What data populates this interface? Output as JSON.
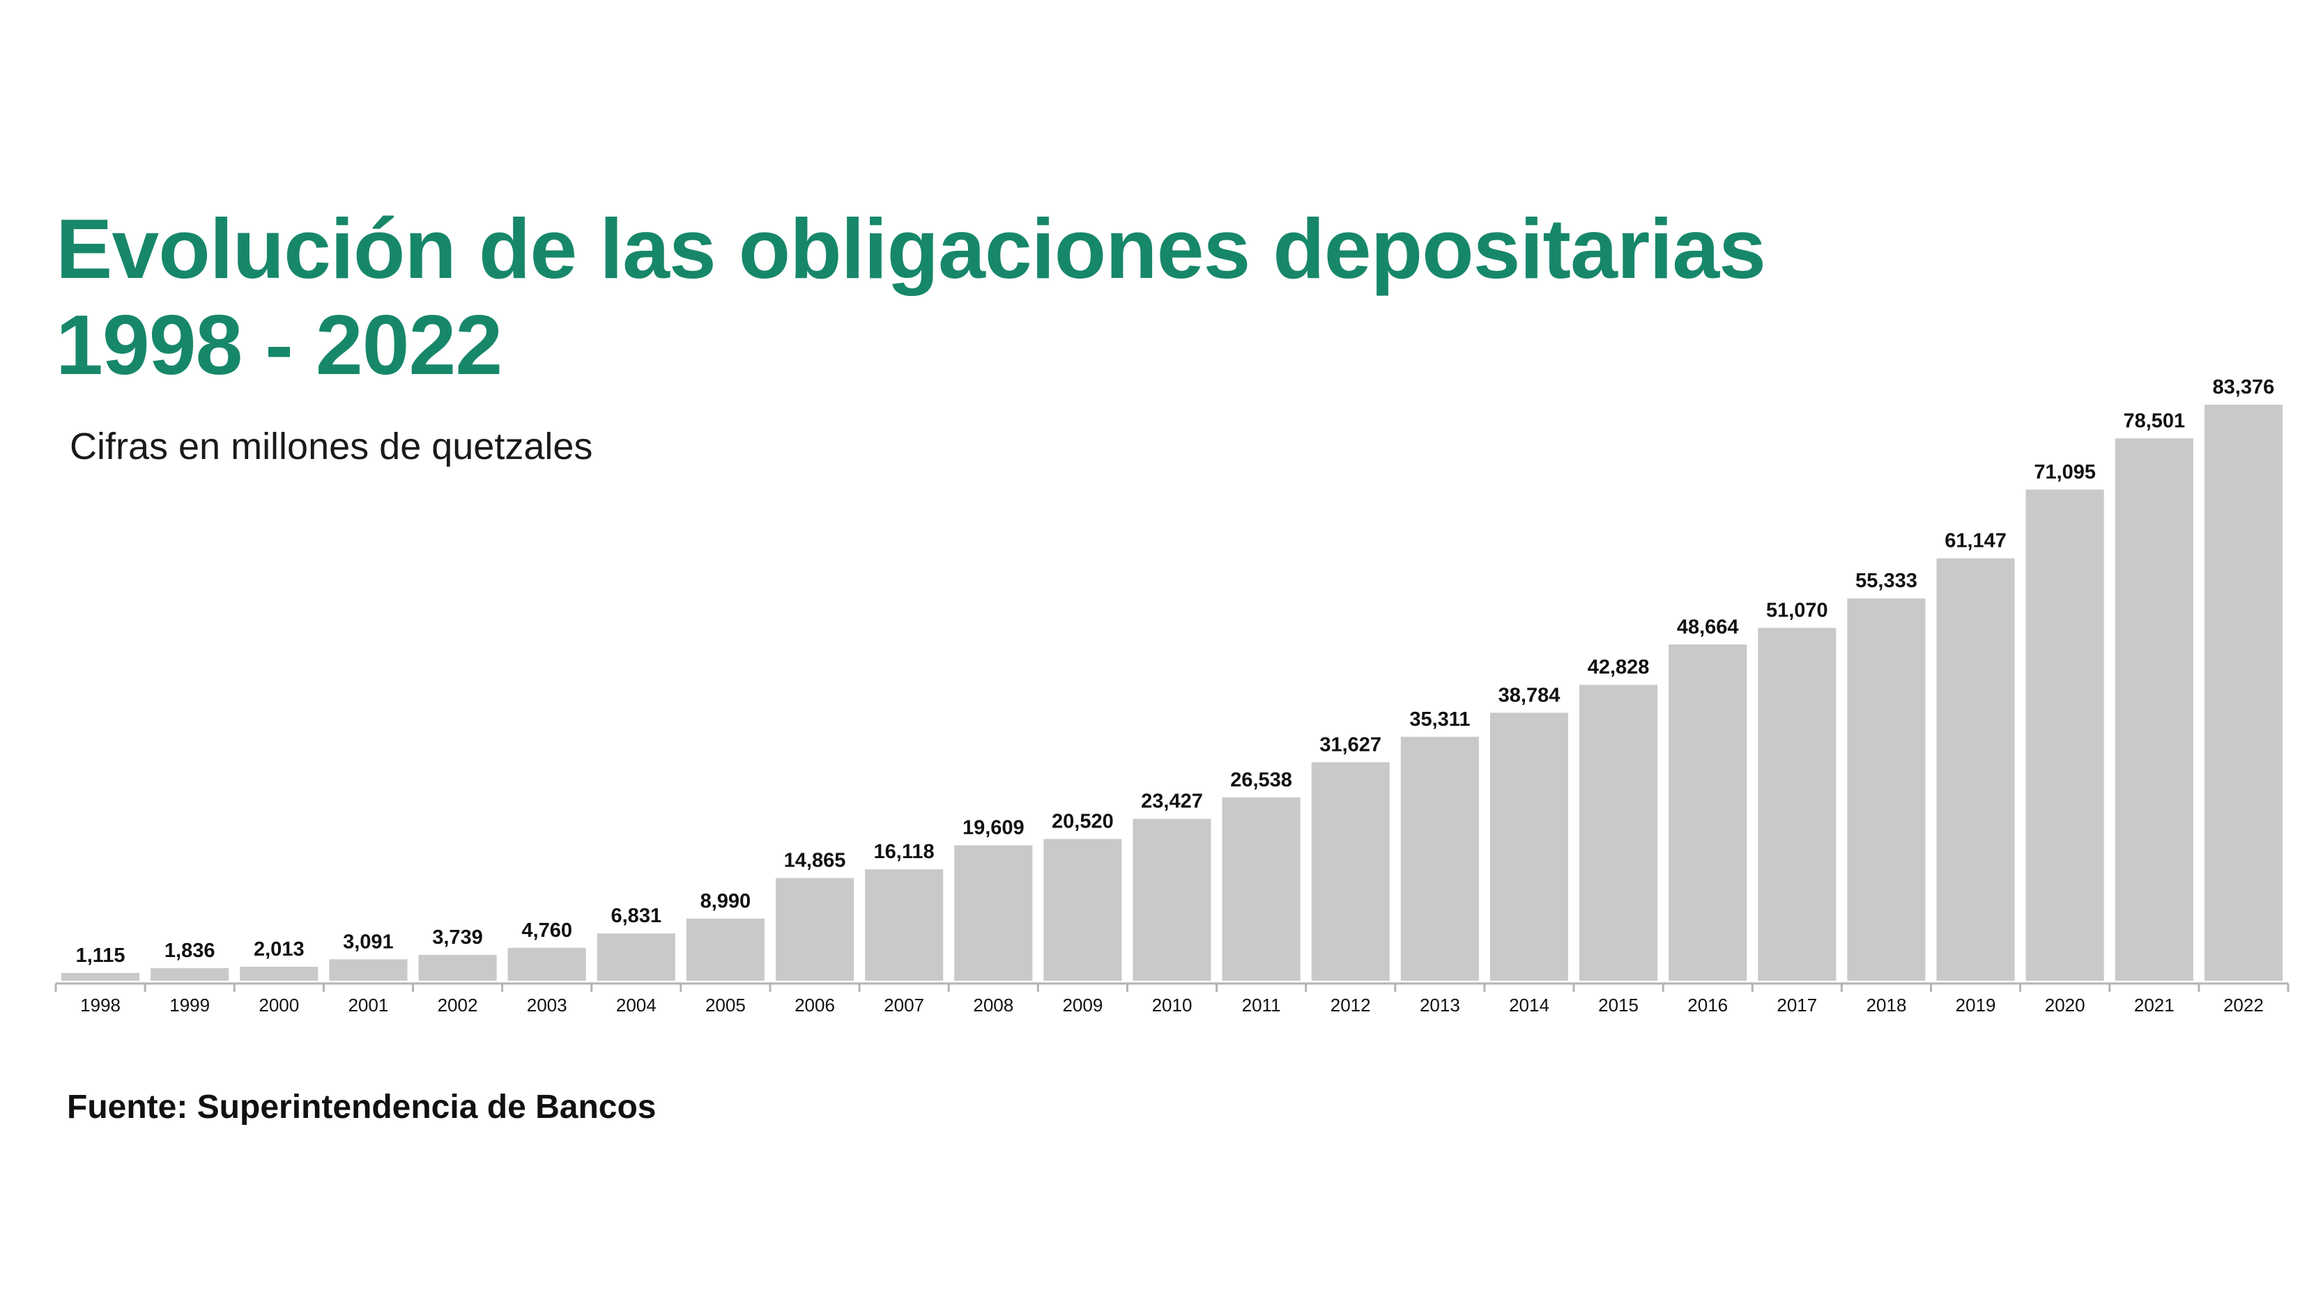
{
  "chart_data": {
    "type": "bar",
    "title": "Evolución de las obligaciones depositarias",
    "title_line2": "1998 - 2022",
    "subtitle": "Cifras en millones de quetzales",
    "source": "Fuente: Superintendencia de Bancos",
    "xlabel": "",
    "ylabel": "",
    "ylim": [
      0,
      83376
    ],
    "grid": false,
    "bar_color": "#c8c9ca",
    "title_color": "#17876a",
    "categories": [
      "1998",
      "1999",
      "2000",
      "2001",
      "2002",
      "2003",
      "2004",
      "2005",
      "2006",
      "2007",
      "2008",
      "2009",
      "2010",
      "2011",
      "2012",
      "2013",
      "2014",
      "2015",
      "2016",
      "2017",
      "2018",
      "2019",
      "2020",
      "2021",
      "2022"
    ],
    "values": [
      1115,
      1836,
      2013,
      3091,
      3739,
      4760,
      6831,
      8990,
      14865,
      16118,
      19609,
      20520,
      23427,
      26538,
      31627,
      35311,
      38784,
      42828,
      48664,
      51070,
      55333,
      61147,
      71095,
      78501,
      83376
    ],
    "value_labels": [
      "1,115",
      "1,836",
      "2,013",
      "3,091",
      "3,739",
      "4,760",
      "6,831",
      "8,990",
      "14,865",
      "16,118",
      "19,609",
      "20,520",
      "23,427",
      "26,538",
      "31,627",
      "35,311",
      "38,784",
      "42,828",
      "48,664",
      "51,070",
      "55,333",
      "61,147",
      "71,095",
      "78,501",
      "83,376"
    ]
  }
}
